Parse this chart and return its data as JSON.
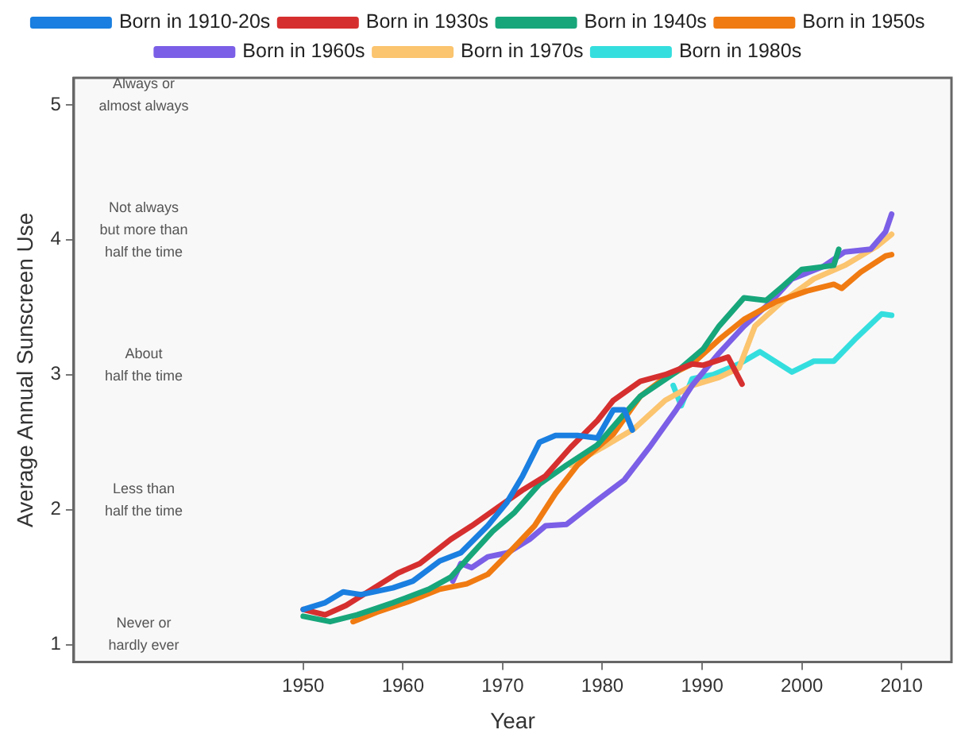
{
  "chart_data": {
    "type": "line",
    "xlabel": "Year",
    "ylabel": "Average Annual Sunscreen Use",
    "xlim": [
      1927,
      2015
    ],
    "ylim": [
      0.87,
      5.2
    ],
    "xticks": [
      1950,
      1960,
      1970,
      1980,
      1990,
      2000,
      2010
    ],
    "yticks": [
      1,
      2,
      3,
      4,
      5
    ],
    "grid": false,
    "legend": "top",
    "marker": "none",
    "line_style": "solid",
    "annotations": [
      "Always or\nalmost always",
      "Not always\nbut more than\nhalf the time",
      "About\nhalf the time",
      "Less than\nhalf the time",
      "Never or\nhardly ever"
    ],
    "series": [
      {
        "name": "Born in 1910-20s",
        "color": "#1a7fe0",
        "x": [
          1950,
          1952.2,
          1954,
          1955.8,
          1959,
          1961,
          1963.7,
          1965.8,
          1968.5,
          1970.4,
          1972,
          1973.7,
          1975.3,
          1977.5,
          1979.5,
          1981.1,
          1982.2,
          1983
        ],
        "values": [
          1.26,
          1.31,
          1.39,
          1.37,
          1.42,
          1.47,
          1.62,
          1.68,
          1.88,
          2.05,
          2.25,
          2.5,
          2.55,
          2.55,
          2.53,
          2.74,
          2.74,
          2.59
        ]
      },
      {
        "name": "Born in 1930s",
        "color": "#d62f2f",
        "x": [
          1950,
          1952.2,
          1954.3,
          1956.9,
          1959.5,
          1961.7,
          1964.8,
          1966.9,
          1969.6,
          1972.1,
          1974.3,
          1976.8,
          1979.5,
          1981.1,
          1983.8,
          1986.3,
          1989,
          1990.1,
          1992.6,
          1994
        ],
        "values": [
          1.26,
          1.22,
          1.29,
          1.41,
          1.53,
          1.6,
          1.78,
          1.88,
          2.02,
          2.15,
          2.25,
          2.46,
          2.66,
          2.81,
          2.95,
          3.0,
          3.08,
          3.07,
          3.13,
          2.93
        ]
      },
      {
        "name": "Born in 1940s",
        "color": "#17a67a",
        "x": [
          1950,
          1952.7,
          1955.4,
          1959,
          1962.6,
          1964.8,
          1966.9,
          1969,
          1971.2,
          1973.7,
          1976.4,
          1979.5,
          1982.2,
          1983.8,
          1987.4,
          1990.1,
          1991.7,
          1994.2,
          1996.4,
          1998,
          2000,
          2003.2,
          2003.7
        ],
        "values": [
          1.21,
          1.17,
          1.22,
          1.31,
          1.41,
          1.5,
          1.67,
          1.84,
          1.98,
          2.19,
          2.33,
          2.48,
          2.71,
          2.84,
          3.02,
          3.19,
          3.36,
          3.57,
          3.55,
          3.65,
          3.78,
          3.81,
          3.93
        ]
      },
      {
        "name": "Born in 1950s",
        "color": "#f07b12",
        "x": [
          1955,
          1957.4,
          1960.6,
          1963.7,
          1966.4,
          1968.5,
          1970.5,
          1973.2,
          1975.3,
          1977.5,
          1979.5,
          1981.1,
          1983.8,
          1986.3,
          1989,
          1991.7,
          1994.2,
          1997.4,
          2000.5,
          2003.2,
          2004,
          2005.9,
          2008.4,
          2009
        ],
        "values": [
          1.17,
          1.24,
          1.32,
          1.41,
          1.45,
          1.52,
          1.67,
          1.88,
          2.12,
          2.33,
          2.46,
          2.56,
          2.84,
          2.98,
          3.08,
          3.26,
          3.41,
          3.54,
          3.62,
          3.67,
          3.64,
          3.76,
          3.88,
          3.89
        ]
      },
      {
        "name": "Born in 1960s",
        "color": "#7b5fe6",
        "x": [
          1965,
          1965.8,
          1966.9,
          1968.5,
          1970.5,
          1972.7,
          1974.3,
          1976.4,
          1979.5,
          1982.2,
          1984.7,
          1987.4,
          1989,
          1991.7,
          1994.2,
          1996.9,
          1999,
          2002.1,
          2004.3,
          2006.9,
          2008.4,
          2009
        ],
        "values": [
          1.47,
          1.6,
          1.57,
          1.65,
          1.68,
          1.78,
          1.88,
          1.89,
          2.07,
          2.22,
          2.46,
          2.74,
          2.92,
          3.16,
          3.36,
          3.54,
          3.71,
          3.8,
          3.91,
          3.93,
          4.06,
          4.19
        ]
      },
      {
        "name": "Born in 1970s",
        "color": "#fbc46e",
        "x": [
          1976.8,
          1980,
          1983.2,
          1986.3,
          1989,
          1991.7,
          1993.7,
          1995.3,
          1998,
          2001.2,
          2004.3,
          2007.5,
          2009
        ],
        "values": [
          2.33,
          2.46,
          2.6,
          2.81,
          2.92,
          2.98,
          3.05,
          3.36,
          3.54,
          3.71,
          3.81,
          3.95,
          4.04
        ]
      },
      {
        "name": "Born in 1980s",
        "color": "#35dede",
        "x": [
          1987.1,
          1987.9,
          1989,
          1991.1,
          1993.7,
          1995.8,
          1999,
          2001.2,
          2003.2,
          2005.3,
          2008,
          2009
        ],
        "values": [
          2.92,
          2.77,
          2.97,
          3.0,
          3.08,
          3.17,
          3.02,
          3.1,
          3.1,
          3.26,
          3.45,
          3.44
        ]
      }
    ]
  }
}
